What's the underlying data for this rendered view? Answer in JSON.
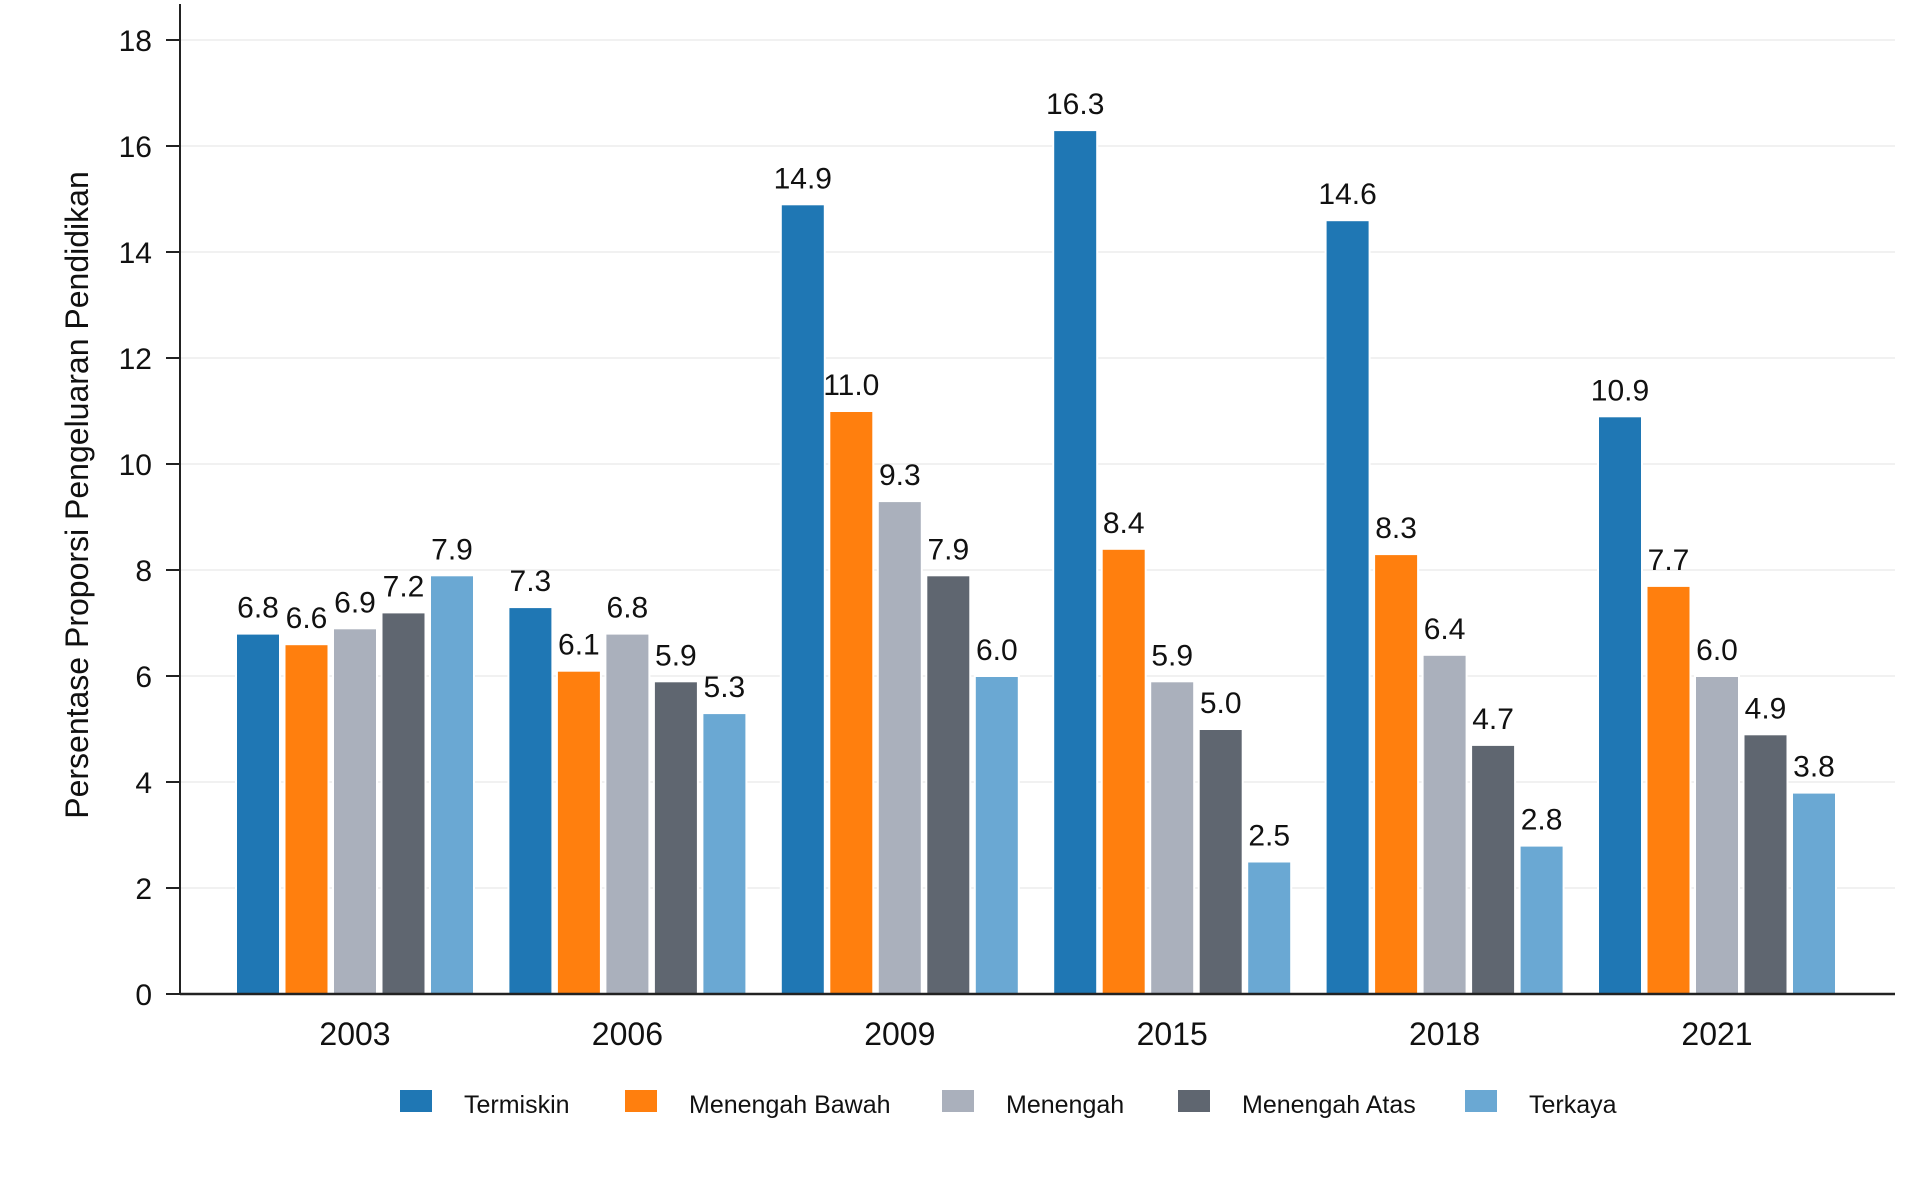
{
  "chart_data": {
    "type": "bar",
    "title": "",
    "xlabel": "",
    "ylabel": "Persentase Proporsi Pengeluaran Pendidikan",
    "categories": [
      "2003",
      "2006",
      "2009",
      "2015",
      "2018",
      "2021"
    ],
    "ylim": [
      0,
      18
    ],
    "yticks": [
      "0",
      "2",
      "4",
      "6",
      "8",
      "10",
      "12",
      "14",
      "16",
      "18"
    ],
    "grid": true,
    "legend_position": "bottom",
    "series": [
      {
        "name": "Termiskin",
        "color": "#1f77b4",
        "values": [
          6.8,
          7.3,
          14.9,
          16.3,
          14.6,
          10.9
        ],
        "labels": [
          "6.8",
          "7.3",
          "14.9",
          "16.3",
          "14.6",
          "10.9"
        ]
      },
      {
        "name": "Menengah Bawah",
        "color": "#ff7f0e",
        "values": [
          6.6,
          6.1,
          11.0,
          8.4,
          8.3,
          7.7
        ],
        "labels": [
          "6.6",
          "6.1",
          "11.0",
          "8.4",
          "8.3",
          "7.7"
        ]
      },
      {
        "name": "Menengah",
        "color": "#aab0bc",
        "values": [
          6.9,
          6.8,
          9.3,
          5.9,
          6.4,
          6.0
        ],
        "labels": [
          "6.9",
          "6.8",
          "9.3",
          "5.9",
          "6.4",
          "6.0"
        ]
      },
      {
        "name": "Menengah Atas",
        "color": "#5f6670",
        "values": [
          7.2,
          5.9,
          7.9,
          5.0,
          4.7,
          4.9
        ],
        "labels": [
          "7.2",
          "5.9",
          "7.9",
          "5.0",
          "4.7",
          "4.9"
        ]
      },
      {
        "name": "Terkaya",
        "color": "#6aa8d3",
        "values": [
          7.9,
          5.3,
          6.0,
          2.5,
          2.8,
          3.8
        ],
        "labels": [
          "7.9",
          "5.3",
          "6.0",
          "2.5",
          "2.8",
          "3.8"
        ]
      }
    ]
  }
}
